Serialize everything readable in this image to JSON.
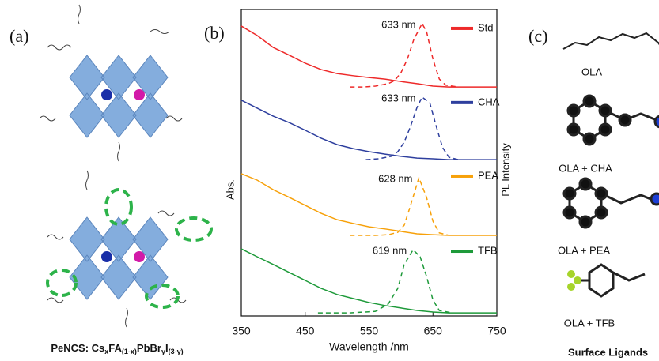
{
  "panel_labels": [
    "(a)",
    "(b)",
    "(c)"
  ],
  "caption_parts": [
    "PeNCS: Cs",
    "x",
    "FA",
    "(1-x)",
    "PbBr",
    "y",
    "I",
    "(3-y)"
  ],
  "ligands": [
    "OLA",
    "OLA + CHA",
    "OLA + PEA",
    "OLA + TFB"
  ],
  "ligands_title": "Surface Ligands",
  "chart_data": {
    "type": "line",
    "xlabel": "Wavelength /nm",
    "ylabel": "Abs.",
    "y2label": "PL Intensity",
    "x": [
      350,
      375,
      400,
      425,
      450,
      475,
      500,
      525,
      550,
      575,
      600,
      625,
      650,
      675,
      700,
      725,
      750
    ],
    "xlim": [
      350,
      750
    ],
    "xticks": [
      350,
      450,
      550,
      650,
      750
    ],
    "ylim": [
      0,
      100
    ],
    "series": [
      {
        "name": "Std",
        "color": "#ee2a2a",
        "peak_label": "633 nm",
        "values": [
          94.6,
          91.5,
          87.6,
          85.1,
          82.5,
          80.4,
          79.1,
          78.4,
          77.8,
          77.3,
          76.5,
          75.8,
          75.0,
          74.7,
          74.7,
          74.7,
          74.7
        ],
        "pl_x": [
          520,
          540,
          560,
          580,
          590,
          600,
          610,
          620,
          633,
          640,
          650,
          660,
          670,
          690
        ],
        "pl_values": [
          74.7,
          74.7,
          75.0,
          75.8,
          76.8,
          79.4,
          83.8,
          90.2,
          95.4,
          92.8,
          83.8,
          77.3,
          75.3,
          74.7
        ]
      },
      {
        "name": "CHA",
        "color": "#2e3f9e",
        "peak_label": "633 nm",
        "values": [
          70.4,
          67.8,
          65.2,
          63.1,
          60.6,
          58.0,
          55.9,
          54.6,
          53.6,
          52.8,
          52.1,
          51.5,
          51.3,
          51.0,
          51.0,
          51.0,
          51.0
        ],
        "pl_x": [
          545,
          565,
          585,
          595,
          605,
          615,
          625,
          633,
          645,
          655,
          665,
          675,
          690
        ],
        "pl_values": [
          51.0,
          51.3,
          52.1,
          53.6,
          56.7,
          61.9,
          68.0,
          71.4,
          69.6,
          62.0,
          55.0,
          51.8,
          51.0
        ]
      },
      {
        "name": "PEA",
        "color": "#f7a10a",
        "peak_label": "628 nm",
        "values": [
          46.4,
          44.3,
          41.2,
          38.7,
          36.1,
          33.5,
          31.4,
          30.2,
          29.1,
          28.4,
          27.6,
          26.8,
          26.5,
          26.3,
          26.3,
          26.3,
          26.3
        ],
        "pl_x": [
          520,
          560,
          580,
          595,
          605,
          615,
          628,
          640,
          650,
          660,
          675
        ],
        "pl_values": [
          26.3,
          26.3,
          26.5,
          27.3,
          29.6,
          36.1,
          45.1,
          38.7,
          30.9,
          27.1,
          26.3
        ]
      },
      {
        "name": "TFB",
        "color": "#1e9a3a",
        "peak_label": "619 nm",
        "values": [
          21.9,
          19.3,
          16.8,
          14.2,
          11.6,
          9.0,
          7.0,
          5.7,
          4.4,
          3.4,
          2.6,
          1.8,
          1.3,
          1.0,
          1.0,
          1.0,
          1.0
        ],
        "pl_x": [
          470,
          520,
          560,
          580,
          595,
          605,
          619,
          630,
          640,
          650,
          660,
          680
        ],
        "pl_values": [
          1.0,
          1.0,
          1.5,
          3.9,
          9.0,
          16.8,
          21.6,
          19.3,
          12.9,
          5.2,
          1.8,
          1.0
        ]
      }
    ]
  }
}
